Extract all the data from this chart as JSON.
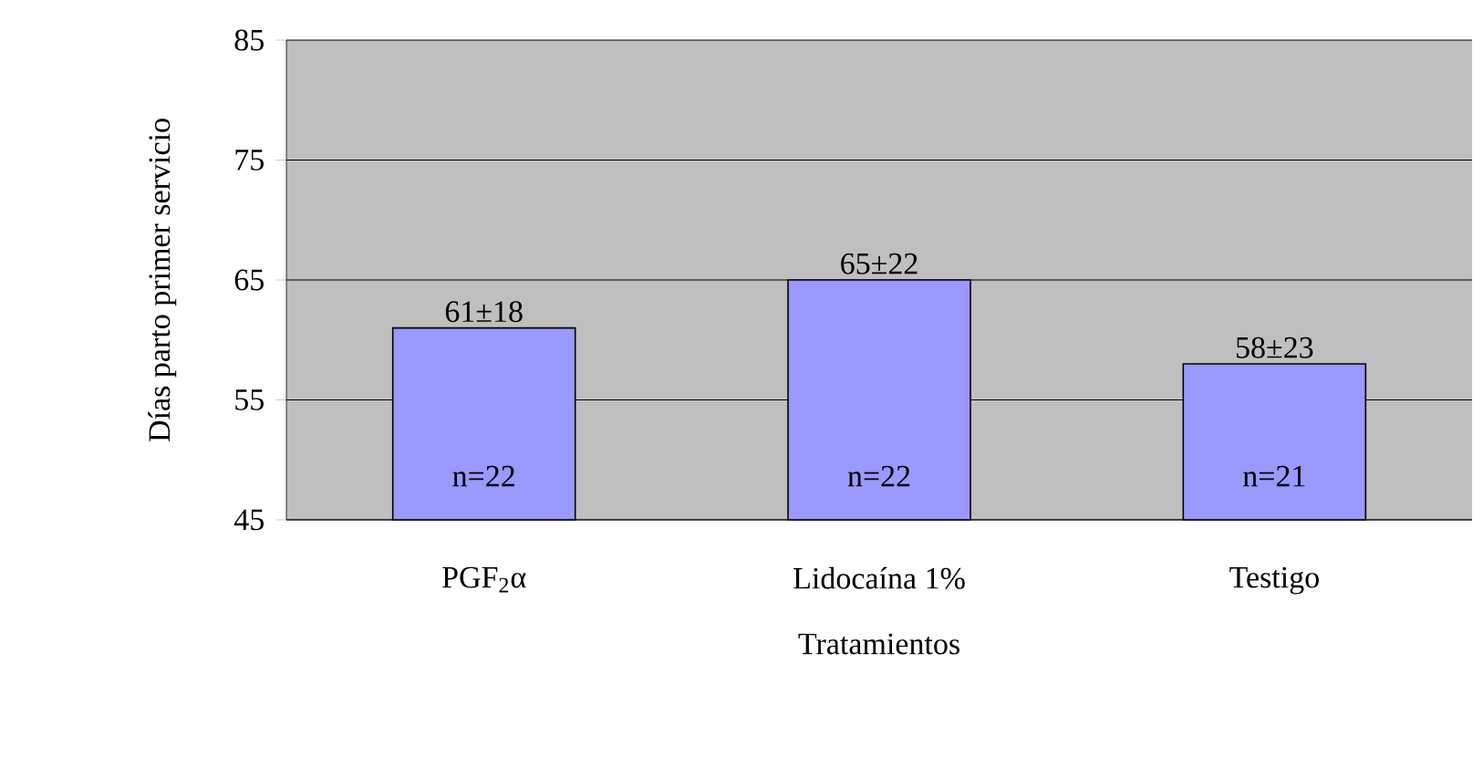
{
  "chart_data": {
    "type": "bar",
    "xlabel": "Tratamientos",
    "ylabel": "Días parto primer servicio",
    "categories": [
      "PGF$_{2}$α",
      "Lidocaína 1%",
      "Testigo"
    ],
    "values": [
      61,
      65,
      58
    ],
    "color": "#9999ff",
    "value_labels": [
      "61±18",
      "65±22",
      "58±23"
    ],
    "annotations": [
      "n=22",
      "n=22",
      "n=21"
    ],
    "ylim": [
      45,
      85
    ],
    "yticks": [
      45,
      55,
      65,
      75,
      85
    ],
    "grid": "y"
  }
}
